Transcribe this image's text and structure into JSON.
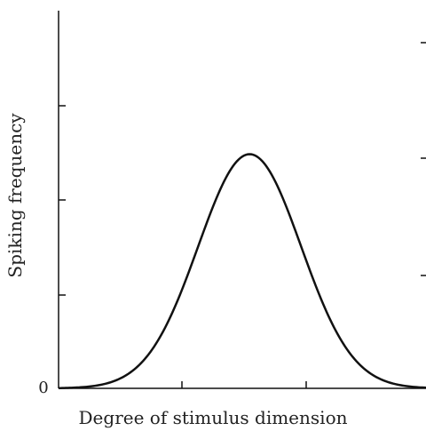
{
  "chart_data": {
    "type": "line",
    "title": "",
    "xlabel": "Degree of stimulus dimension",
    "ylabel": "Spiking frequency",
    "y_tick_labels": [
      "0"
    ],
    "x_ticks_labeled": false,
    "grid": false,
    "legend": "none",
    "xlim": [
      0,
      1
    ],
    "ylim": [
      0,
      1
    ],
    "series": [
      {
        "shape": "gaussian tuning curve",
        "peak_x": 0.52,
        "peak_y": 0.62,
        "sigma": 0.14,
        "color": "#111111"
      }
    ]
  }
}
